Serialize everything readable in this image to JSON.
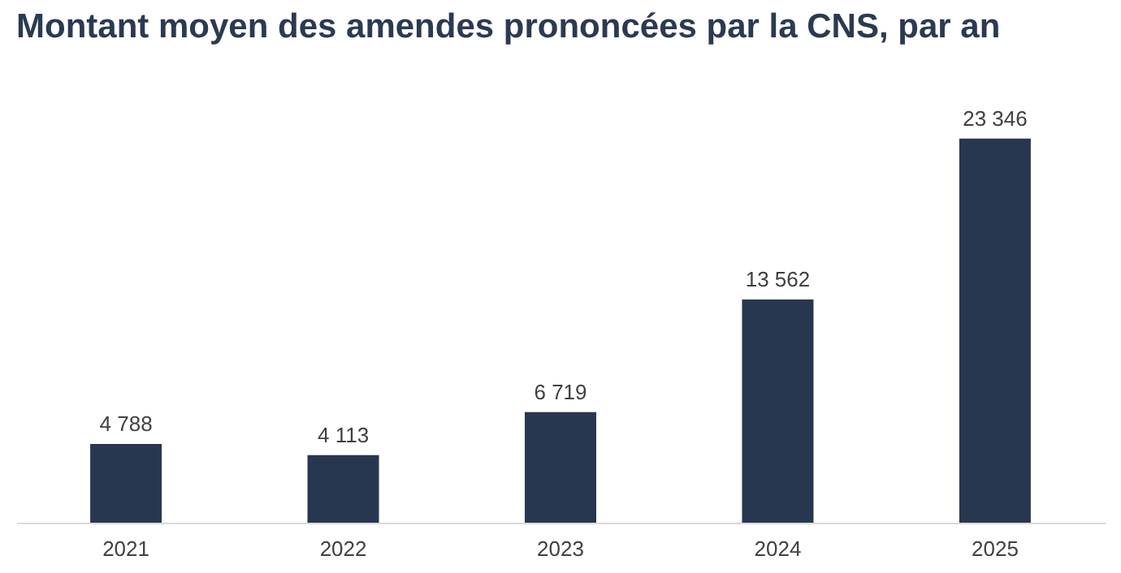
{
  "chart_data": {
    "type": "bar",
    "title": "Montant moyen des amendes prononcées par la CNS, par an",
    "categories": [
      "2021",
      "2022",
      "2023",
      "2024",
      "2025"
    ],
    "values": [
      4788,
      4113,
      6719,
      13562,
      23346
    ],
    "value_labels": [
      "4 788",
      "4 113",
      "6 719",
      "13 562",
      "23 346"
    ],
    "color": "#27374f"
  }
}
